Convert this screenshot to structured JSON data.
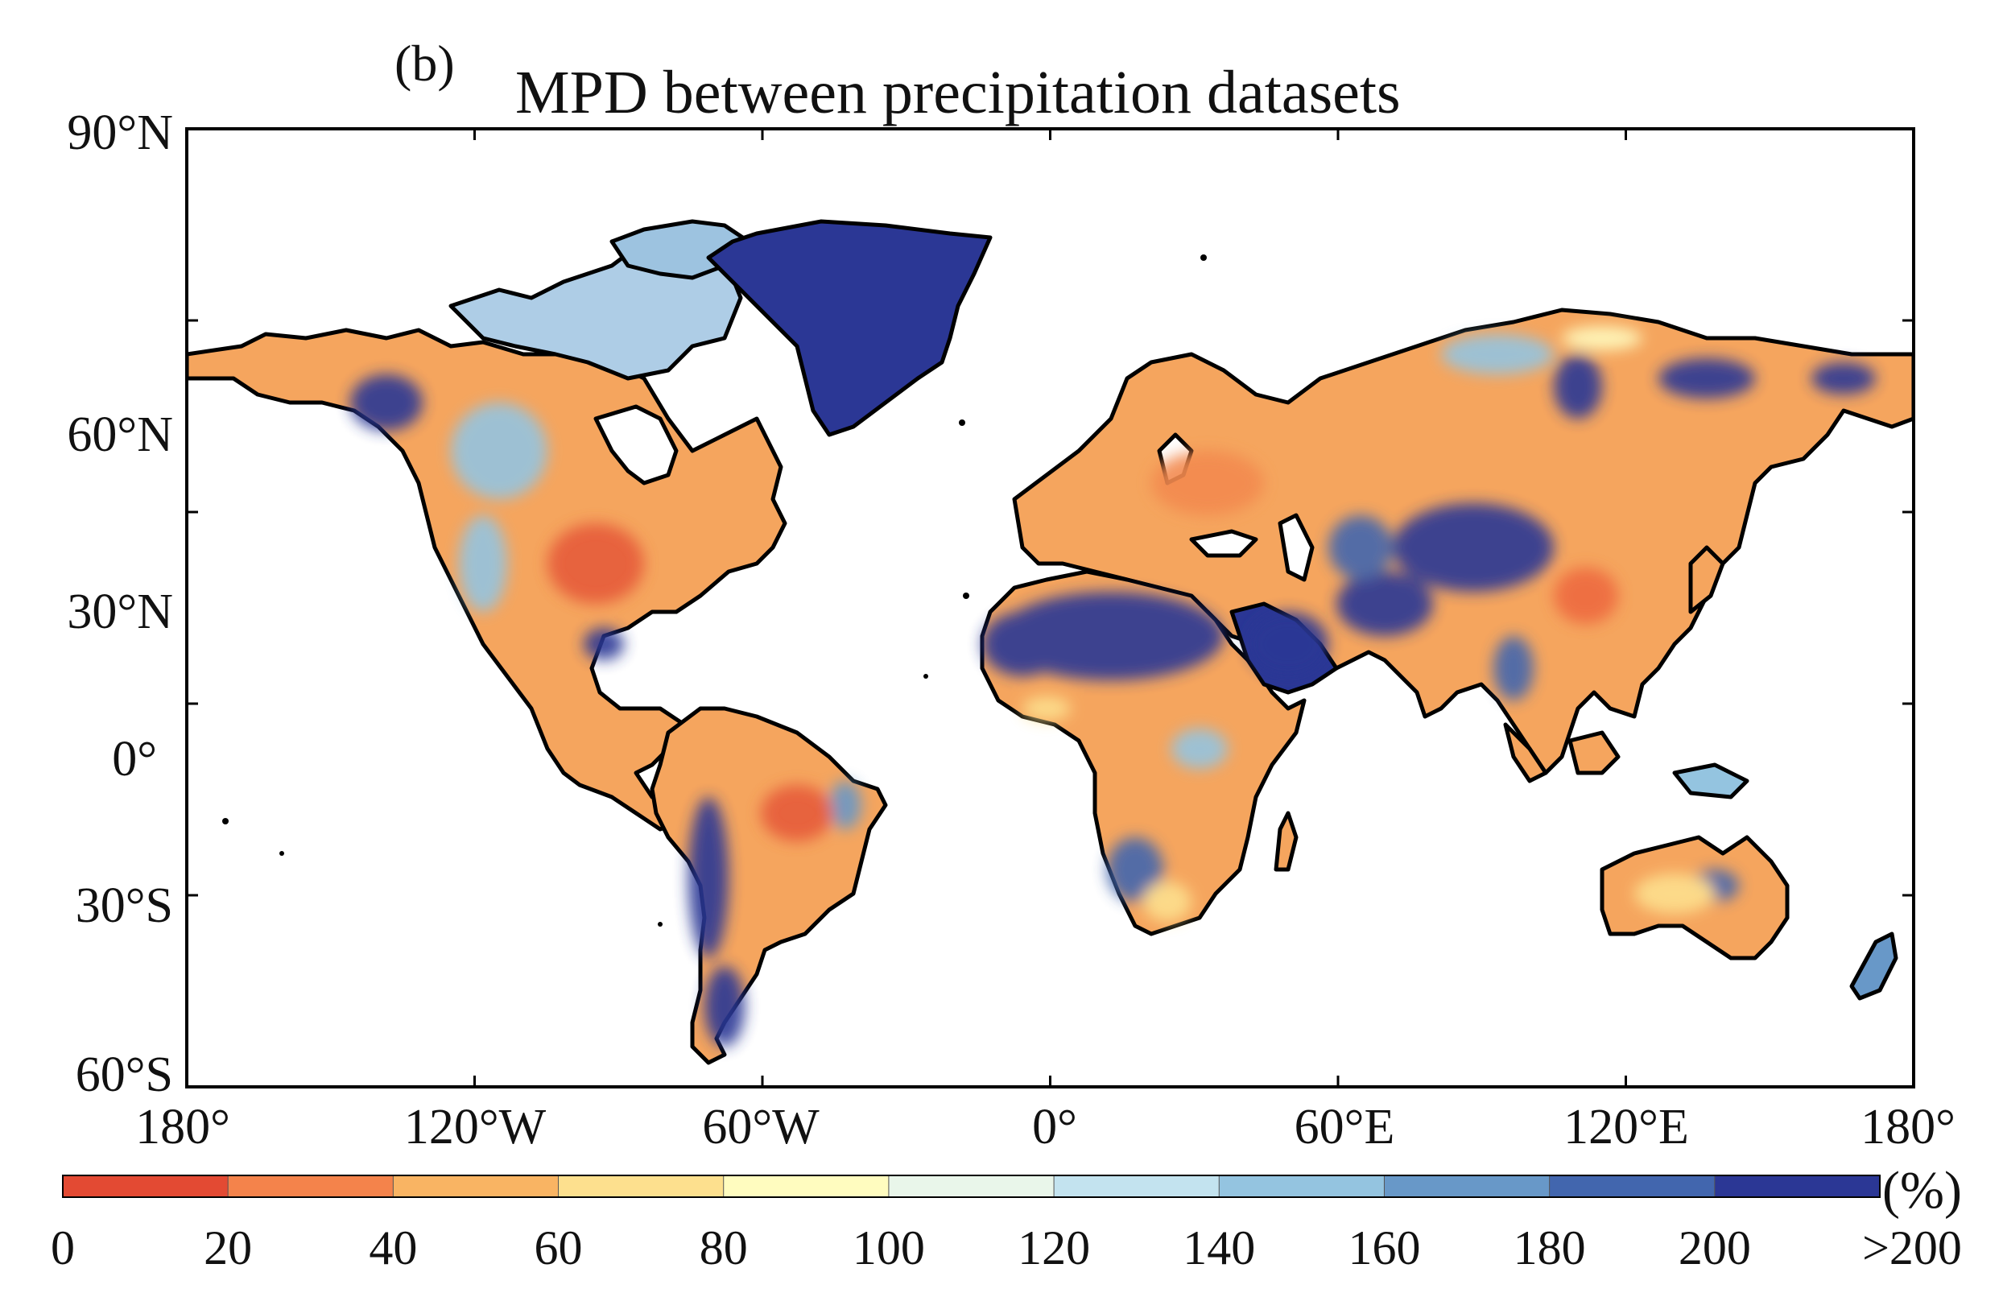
{
  "panel_label": "(b)",
  "title": "MPD between precipitation datasets",
  "lat_ticks": [
    "90°N",
    "60°N",
    "30°N",
    "0°",
    "30°S",
    "60°S"
  ],
  "lon_ticks": [
    "180°",
    "120°W",
    "60°W",
    "0°",
    "60°E",
    "120°E",
    "180°"
  ],
  "colorbar": {
    "unit": "(%)",
    "labels": [
      "0",
      "20",
      "40",
      "60",
      "80",
      "100",
      "120",
      "140",
      "160",
      "180",
      "200",
      ">200"
    ],
    "colors": [
      "#e34a33",
      "#f4834b",
      "#f9b463",
      "#fde08e",
      "#fffcbf",
      "#e9f6ea",
      "#c3e3ef",
      "#94c4e0",
      "#6898c8",
      "#4266ae",
      "#2b3795"
    ]
  },
  "map": {
    "lon_range": [
      -180,
      180
    ],
    "lat_range": [
      -60,
      90
    ],
    "land_base_color": "#f5a55e",
    "coast_color": "#000000"
  }
}
